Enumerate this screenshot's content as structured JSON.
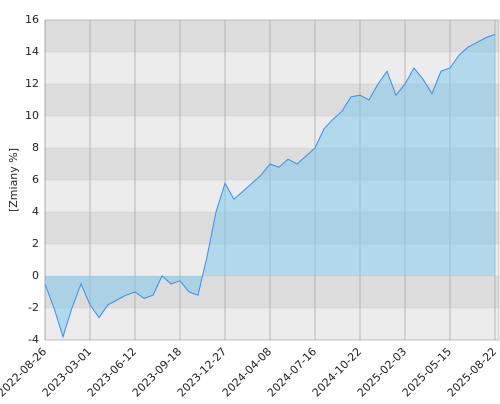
{
  "chart_data": {
    "type": "area",
    "y_label": "[Zmiany %]",
    "categories": [
      "2022-08-26",
      null,
      null,
      null,
      null,
      "2023-03-01",
      null,
      null,
      null,
      null,
      "2023-06-12",
      null,
      null,
      null,
      null,
      "2023-09-18",
      null,
      null,
      null,
      null,
      "2023-12-27",
      null,
      null,
      null,
      null,
      "2024-04-08",
      null,
      null,
      null,
      null,
      "2024-07-16",
      null,
      null,
      null,
      null,
      "2024-10-22",
      null,
      null,
      null,
      null,
      "2025-02-03",
      null,
      null,
      null,
      null,
      "2025-05-15",
      null,
      null,
      null,
      null,
      "2025-08-22"
    ],
    "values": [
      -0.5,
      -2.0,
      -3.8,
      -2.0,
      -0.5,
      -1.8,
      -2.6,
      -1.8,
      -1.5,
      -1.2,
      -1.0,
      -1.4,
      -1.2,
      0.0,
      -0.5,
      -0.3,
      -1.0,
      -1.2,
      1.2,
      4.0,
      5.8,
      4.8,
      5.3,
      5.8,
      6.3,
      7.0,
      6.8,
      7.3,
      7.0,
      7.5,
      8.0,
      9.2,
      9.8,
      10.3,
      11.2,
      11.3,
      11.0,
      12.0,
      12.8,
      11.3,
      12.0,
      13.0,
      12.3,
      11.4,
      12.8,
      13.0,
      13.8,
      14.3,
      14.6,
      14.9,
      15.1
    ],
    "color": "#3b8fe8",
    "ylim": [
      -4,
      16
    ],
    "yticks": [
      -4,
      -2,
      0,
      2,
      4,
      6,
      8,
      10,
      12,
      14,
      16
    ],
    "grid": true
  }
}
